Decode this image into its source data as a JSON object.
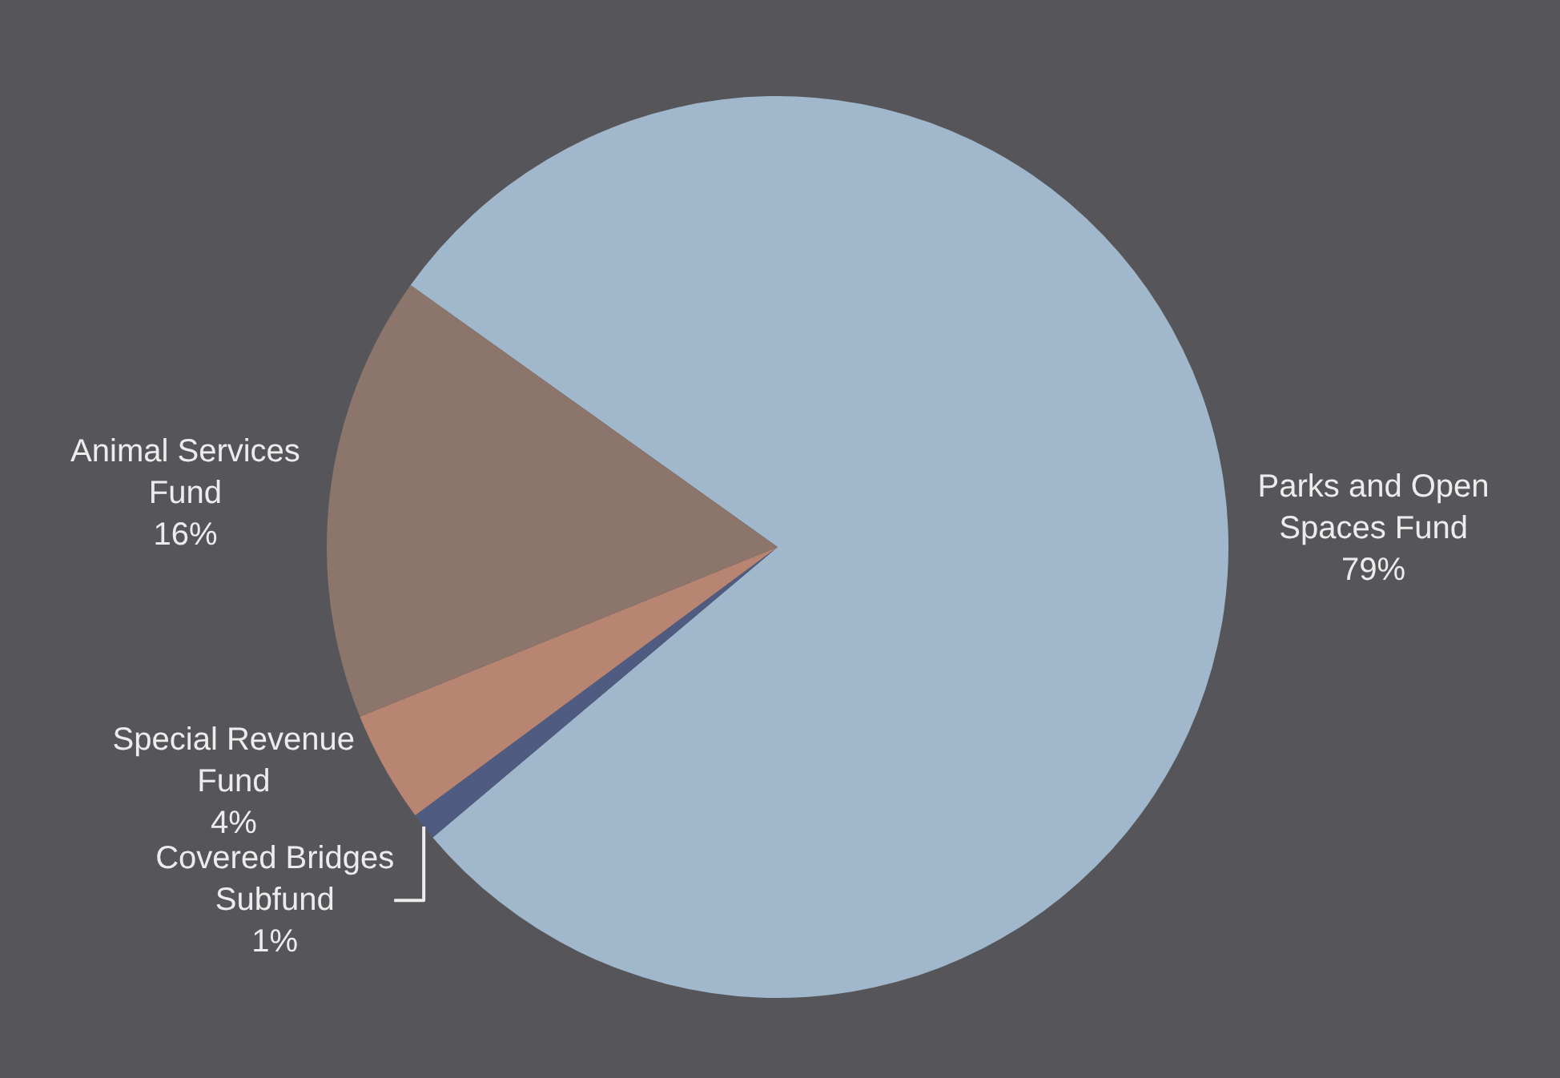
{
  "chart_data": {
    "type": "pie",
    "categories": [
      "Parks and Open Spaces Fund",
      "Covered Bridges Subfund",
      "Special Revenue Fund",
      "Animal Services Fund"
    ],
    "values": [
      79,
      1,
      4,
      16
    ],
    "colors": [
      "#a0b7cc",
      "#4f5b80",
      "#b88572",
      "#8c756b"
    ],
    "value_labels": [
      "79%",
      "1%",
      "4%",
      "16%"
    ],
    "legend": false
  }
}
